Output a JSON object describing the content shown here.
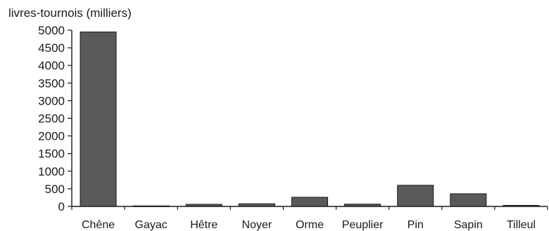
{
  "chart_data": {
    "type": "bar",
    "ylabel": "livres-tournois (milliers)",
    "xlabel": "",
    "categories": [
      "Chêne",
      "Gayac",
      "Hêtre",
      "Noyer",
      "Orme",
      "Peuplier",
      "Pin",
      "Sapin",
      "Tilleul"
    ],
    "values": [
      4950,
      15,
      60,
      75,
      260,
      65,
      600,
      360,
      30
    ],
    "ylim": [
      0,
      5000
    ],
    "yticks": [
      0,
      500,
      1000,
      1500,
      2000,
      2500,
      3000,
      3500,
      4000,
      4500,
      5000
    ],
    "grid": false,
    "legend": "none",
    "colors": {
      "bar_fill": "#5a5a5a",
      "bar_stroke": "#1a1a1a",
      "axis": "#1a1a1a"
    }
  }
}
